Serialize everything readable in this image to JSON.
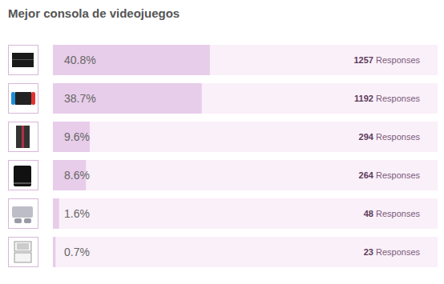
{
  "chart_data": {
    "type": "bar",
    "title": "Mejor consola de videojuegos",
    "orientation": "horizontal",
    "categories": [
      null,
      null,
      null,
      null,
      null,
      null
    ],
    "values": [
      40.8,
      38.7,
      9.6,
      8.6,
      1.6,
      0.7
    ],
    "value_labels": [
      "40.8%",
      "38.7%",
      "9.6%",
      "8.6%",
      "1.6%",
      "0.7%"
    ],
    "data_labels": true,
    "counts": [
      1257,
      1192,
      294,
      264,
      48,
      23
    ],
    "count_label": "Responses",
    "xlim": [
      0,
      100
    ],
    "tick_labels": false,
    "grid": false,
    "color": "#e8cdea"
  }
}
